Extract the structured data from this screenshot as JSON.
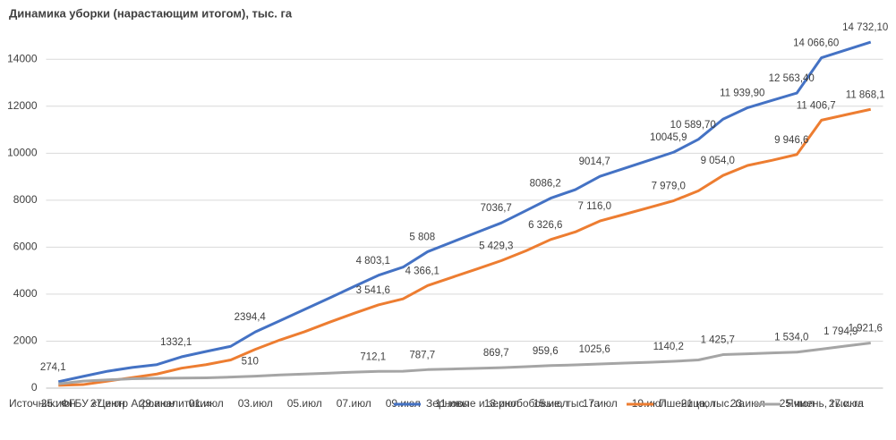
{
  "chart_data": {
    "type": "line",
    "title": "Динамика уборки (нарастающим итогом), тыс. га",
    "source": "Источник: ФГБУ «Центр Агроаналитики»",
    "categories": [
      "25.июн",
      null,
      "27.июн",
      null,
      "29.июн",
      null,
      "01.июл",
      null,
      "03.июл",
      null,
      "05.июл",
      null,
      "07.июл",
      null,
      "09.июл",
      null,
      "11.июл",
      null,
      "13.июл",
      null,
      "15.июл",
      null,
      "17.июл",
      null,
      "19.июл",
      null,
      "21.июл",
      null,
      "23.июл",
      null,
      "25.июл",
      null,
      "27.июл",
      null
    ],
    "ylim": [
      0,
      15000
    ],
    "yticks": [
      0,
      2000,
      4000,
      6000,
      8000,
      10000,
      12000,
      14000
    ],
    "grid": true,
    "legend": "bottom",
    "series": [
      {
        "name": "Зерновые и зернобобовые, тыс. га",
        "color": "#4472c4",
        "values": [
          274.1,
          500,
          720,
          880,
          1000,
          1332.1,
          1560,
          1780,
          2394.4,
          2870,
          3350,
          3830,
          4320,
          4803.1,
          5150,
          5808,
          6220,
          6630,
          7036.7,
          7560,
          8086.2,
          8450,
          9014.7,
          9360,
          9700,
          10045.9,
          10589.7,
          11450,
          11939.9,
          12250,
          12563.4,
          14066.6,
          14400,
          14732.1
        ],
        "value_labels": [
          "274,1",
          null,
          null,
          null,
          null,
          "1332,1",
          null,
          null,
          "2394,4",
          null,
          null,
          null,
          null,
          "4 803,1",
          null,
          "5 808",
          null,
          null,
          "7036,7",
          null,
          "8086,2",
          null,
          "9014,7",
          null,
          null,
          "10045,9",
          "10 589,70",
          null,
          "11 939,90",
          null,
          "12 563,40",
          "14 066,60",
          null,
          "14 732,10"
        ]
      },
      {
        "name": "Пшеница, тыс. га",
        "color": "#ed7d31",
        "values": [
          120,
          150,
          300,
          450,
          600,
          850,
          1000,
          1200,
          1650,
          2050,
          2400,
          2800,
          3180,
          3541.6,
          3800,
          4366.1,
          4720,
          5070,
          5429.3,
          5850,
          6326.6,
          6650,
          7116.0,
          7400,
          7690,
          7979.0,
          8400,
          9054.0,
          9480,
          9700,
          9946.6,
          11406.7,
          11640,
          11868.1
        ],
        "value_labels": [
          null,
          null,
          null,
          null,
          null,
          null,
          null,
          null,
          null,
          null,
          null,
          null,
          null,
          "3 541,6",
          null,
          "4 366,1",
          null,
          null,
          "5 429,3",
          null,
          "6 326,6",
          null,
          "7 116,0",
          null,
          null,
          "7 979,0",
          null,
          "9 054,0",
          null,
          null,
          "9 946,6",
          "11 406,7",
          null,
          "11 868,1"
        ]
      },
      {
        "name": "Ячмень, тыс. га",
        "color": "#a5a5a5",
        "values": [
          180,
          300,
          350,
          400,
          420,
          430,
          440,
          470,
          510,
          560,
          600,
          640,
          680,
          712.1,
          720,
          787.7,
          815,
          840,
          869.7,
          915,
          959.6,
          990,
          1025.6,
          1065,
          1100,
          1140.2,
          1200,
          1425.7,
          1460,
          1500,
          1534.0,
          1660,
          1794.9,
          1921.6
        ],
        "value_labels": [
          null,
          null,
          null,
          null,
          null,
          null,
          null,
          null,
          "510",
          null,
          null,
          null,
          null,
          "712,1",
          null,
          "787,7",
          null,
          null,
          "869,7",
          null,
          "959,6",
          null,
          "1025,6",
          null,
          null,
          "1140,2",
          null,
          "1 425,7",
          null,
          null,
          "1 534,0",
          null,
          "1 794,9",
          "1 921,6"
        ]
      }
    ]
  }
}
